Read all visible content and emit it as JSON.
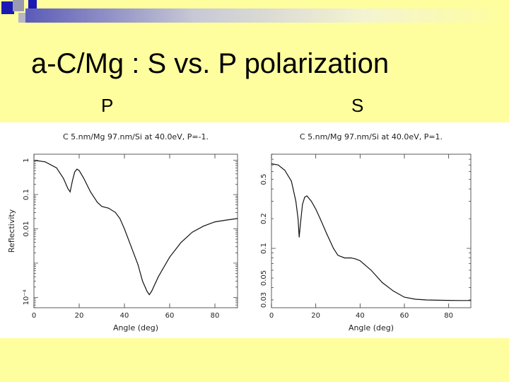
{
  "slide": {
    "title": "a-C/Mg : S vs. P polarization",
    "label_p": "P",
    "label_s": "S",
    "colors": {
      "background": "#fefe9e",
      "accent_blue": "#1a1ab3",
      "accent_gray": "#9b9bb0",
      "plot_bg": "#ffffff"
    }
  },
  "chart_data": [
    {
      "type": "line",
      "title": "C 5.nm/Mg 97.nm/Si at 40.0eV, P=-1.",
      "xlabel": "Angle (deg)",
      "ylabel": "Reflectivity",
      "xlim": [
        0,
        90
      ],
      "x_ticks": [
        "0",
        "20",
        "40",
        "60",
        "80"
      ],
      "y_scale": "log",
      "ylim": [
        5e-05,
        1.5
      ],
      "y_ticks": [
        {
          "label": "10⁻⁴",
          "value": 0.0001
        },
        {
          "label": "0.01",
          "value": 0.01
        },
        {
          "label": "0.1",
          "value": 0.1
        },
        {
          "label": "1",
          "value": 1
        }
      ],
      "series": [
        {
          "x": [
            0,
            5,
            10,
            13,
            15,
            16,
            17,
            18,
            19,
            20,
            22,
            25,
            28,
            30,
            33,
            36,
            38,
            40,
            43,
            46,
            48,
            50,
            51,
            52,
            55,
            60,
            65,
            70,
            75,
            80,
            85,
            90
          ],
          "y": [
            1.0,
            0.9,
            0.6,
            0.3,
            0.15,
            0.12,
            0.25,
            0.45,
            0.55,
            0.5,
            0.3,
            0.12,
            0.06,
            0.045,
            0.04,
            0.03,
            0.02,
            0.01,
            0.003,
            0.0009,
            0.0003,
            0.00015,
            0.00012,
            0.00015,
            0.0004,
            0.0015,
            0.004,
            0.008,
            0.012,
            0.016,
            0.018,
            0.02
          ]
        }
      ]
    },
    {
      "type": "line",
      "title": "C 5.nm/Mg 97.nm/Si at 40.0eV, P=1.",
      "xlabel": "Angle (deg)",
      "ylabel": "Reflectivity",
      "xlim": [
        0,
        90
      ],
      "x_ticks": [
        "0",
        "20",
        "40",
        "60",
        "80"
      ],
      "y_scale": "log",
      "ylim": [
        0.025,
        0.9
      ],
      "y_ticks": [
        {
          "label": "0.03",
          "value": 0.03
        },
        {
          "label": "0.05",
          "value": 0.05
        },
        {
          "label": "0.1",
          "value": 0.1
        },
        {
          "label": "0.2",
          "value": 0.2
        },
        {
          "label": "0.5",
          "value": 0.5
        }
      ],
      "series": [
        {
          "x": [
            0,
            3,
            6,
            9,
            11,
            12,
            12.5,
            13,
            14,
            15,
            16,
            18,
            20,
            22,
            25,
            28,
            30,
            33,
            36,
            38,
            40,
            45,
            50,
            55,
            60,
            65,
            70,
            75,
            80,
            85,
            90
          ],
          "y": [
            0.72,
            0.7,
            0.62,
            0.48,
            0.3,
            0.2,
            0.13,
            0.17,
            0.28,
            0.33,
            0.34,
            0.3,
            0.25,
            0.2,
            0.14,
            0.1,
            0.085,
            0.08,
            0.08,
            0.078,
            0.075,
            0.06,
            0.045,
            0.037,
            0.032,
            0.0305,
            0.03,
            0.0298,
            0.0297,
            0.0296,
            0.0296
          ]
        }
      ]
    }
  ]
}
